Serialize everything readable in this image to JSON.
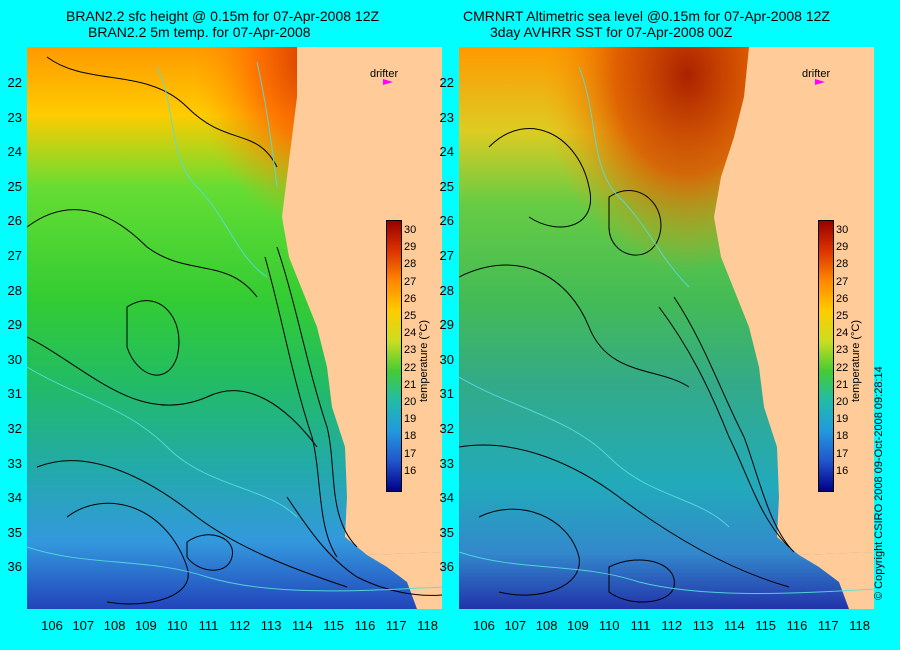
{
  "left_panel": {
    "title_line1": "BRAN2.2 sfc height @ 0.15m for 07-Apr-2008 12Z",
    "title_line2": "BRAN2.2 5m temp. for 07-Apr-2008"
  },
  "right_panel": {
    "title_line1": "CMRNRT Altimetric sea level  @0.15m  for 07-Apr-2008 12Z",
    "title_line2": "3day AVHRR SST for 07-Apr-2008 00Z"
  },
  "drifter_label": "drifter",
  "colorbar": {
    "title": "temperature (°C)",
    "ticks": [
      "30",
      "29",
      "28",
      "27",
      "26",
      "25",
      "24",
      "23",
      "22",
      "21",
      "20",
      "19",
      "18",
      "17",
      "16"
    ]
  },
  "lat_labels": [
    "22",
    "23",
    "24",
    "25",
    "26",
    "27",
    "28",
    "29",
    "30",
    "31",
    "32",
    "33",
    "34",
    "35",
    "36"
  ],
  "lon_labels": [
    "106",
    "107",
    "108",
    "109",
    "110",
    "111",
    "112",
    "113",
    "114",
    "115",
    "116",
    "117",
    "118"
  ],
  "copyright": "© Copyright CSIRO 2008   09-Oct-2008 09:28:14",
  "colors": {
    "background": "#00ffff",
    "land": "#ffcc99",
    "drifter_marker": "#ff00ff"
  }
}
